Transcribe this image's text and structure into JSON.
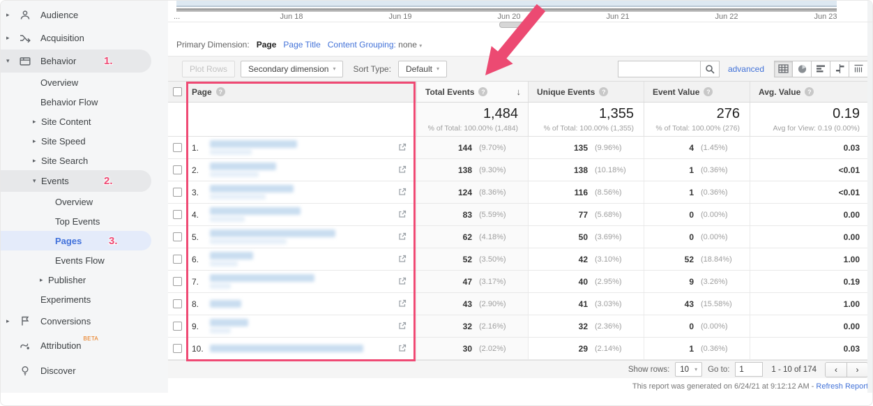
{
  "colors": {
    "accent_pink": "#ef4a74",
    "link_blue": "#4272d8",
    "active_blue": "#4272db",
    "beta_orange": "#e8710a"
  },
  "sidebar": {
    "items": [
      {
        "label": "Audience",
        "icon": "audience-icon"
      },
      {
        "label": "Acquisition",
        "icon": "acquisition-icon"
      },
      {
        "label": "Behavior",
        "icon": "behavior-icon",
        "annotation": "1."
      },
      {
        "label": "Overview"
      },
      {
        "label": "Behavior Flow"
      },
      {
        "label": "Site Content"
      },
      {
        "label": "Site Speed"
      },
      {
        "label": "Site Search"
      },
      {
        "label": "Events",
        "annotation": "2."
      },
      {
        "label": "Overview"
      },
      {
        "label": "Top Events"
      },
      {
        "label": "Pages",
        "annotation": "3."
      },
      {
        "label": "Events Flow"
      },
      {
        "label": "Publisher"
      },
      {
        "label": "Experiments"
      },
      {
        "label": "Conversions",
        "icon": "conversions-icon"
      },
      {
        "label": "Attribution",
        "icon": "attribution-icon",
        "badge": "BETA"
      },
      {
        "label": "Discover",
        "icon": "discover-icon"
      }
    ]
  },
  "chart": {
    "x_labels": [
      "...",
      "Jun 18",
      "Jun 19",
      "Jun 20",
      "Jun 21",
      "Jun 22",
      "Jun 23"
    ]
  },
  "primary_dimension": {
    "label": "Primary Dimension:",
    "selected": "Page",
    "alt": "Page Title",
    "grouping_label": "Content Grouping:",
    "grouping_value": "none"
  },
  "toolbar": {
    "plot_rows": "Plot Rows",
    "secondary_dimension": "Secondary dimension",
    "sort_type_label": "Sort Type:",
    "sort_type_value": "Default",
    "search_value": "",
    "advanced": "advanced"
  },
  "table": {
    "columns": {
      "page": "Page",
      "total_events": "Total Events",
      "unique_events": "Unique Events",
      "event_value": "Event Value",
      "avg_value": "Avg. Value"
    },
    "summary": {
      "total_events": {
        "value": "1,484",
        "sub": "% of Total: 100.00% (1,484)"
      },
      "unique_events": {
        "value": "1,355",
        "sub": "% of Total: 100.00% (1,355)"
      },
      "event_value": {
        "value": "276",
        "sub": "% of Total: 100.00% (276)"
      },
      "avg_value": {
        "value": "0.19",
        "sub": "Avg for View: 0.19 (0.00%)"
      }
    },
    "rows": [
      {
        "index": "1.",
        "total_events": "144",
        "total_events_pct": "(9.70%)",
        "unique_events": "135",
        "unique_events_pct": "(9.96%)",
        "event_value": "4",
        "event_value_pct": "(1.45%)",
        "avg_value": "0.03",
        "redacted_w": 125,
        "redacted_w2": 60
      },
      {
        "index": "2.",
        "total_events": "138",
        "total_events_pct": "(9.30%)",
        "unique_events": "138",
        "unique_events_pct": "(10.18%)",
        "event_value": "1",
        "event_value_pct": "(0.36%)",
        "avg_value": "<0.01",
        "redacted_w": 95,
        "redacted_w2": 70
      },
      {
        "index": "3.",
        "total_events": "124",
        "total_events_pct": "(8.36%)",
        "unique_events": "116",
        "unique_events_pct": "(8.56%)",
        "event_value": "1",
        "event_value_pct": "(0.36%)",
        "avg_value": "<0.01",
        "redacted_w": 120,
        "redacted_w2": 80
      },
      {
        "index": "4.",
        "total_events": "83",
        "total_events_pct": "(5.59%)",
        "unique_events": "77",
        "unique_events_pct": "(5.68%)",
        "event_value": "0",
        "event_value_pct": "(0.00%)",
        "avg_value": "0.00",
        "redacted_w": 130,
        "redacted_w2": 50
      },
      {
        "index": "5.",
        "total_events": "62",
        "total_events_pct": "(4.18%)",
        "unique_events": "50",
        "unique_events_pct": "(3.69%)",
        "event_value": "0",
        "event_value_pct": "(0.00%)",
        "avg_value": "0.00",
        "redacted_w": 180,
        "redacted_w2": 110
      },
      {
        "index": "6.",
        "total_events": "52",
        "total_events_pct": "(3.50%)",
        "unique_events": "42",
        "unique_events_pct": "(3.10%)",
        "event_value": "52",
        "event_value_pct": "(18.84%)",
        "avg_value": "1.00",
        "redacted_w": 62,
        "redacted_w2": 40
      },
      {
        "index": "7.",
        "total_events": "47",
        "total_events_pct": "(3.17%)",
        "unique_events": "40",
        "unique_events_pct": "(2.95%)",
        "event_value": "9",
        "event_value_pct": "(3.26%)",
        "avg_value": "0.19",
        "redacted_w": 150,
        "redacted_w2": 30
      },
      {
        "index": "8.",
        "total_events": "43",
        "total_events_pct": "(2.90%)",
        "unique_events": "41",
        "unique_events_pct": "(3.03%)",
        "event_value": "43",
        "event_value_pct": "(15.58%)",
        "avg_value": "1.00",
        "redacted_w": 45,
        "redacted_w2": 0
      },
      {
        "index": "9.",
        "total_events": "32",
        "total_events_pct": "(2.16%)",
        "unique_events": "32",
        "unique_events_pct": "(2.36%)",
        "event_value": "0",
        "event_value_pct": "(0.00%)",
        "avg_value": "0.00",
        "redacted_w": 55,
        "redacted_w2": 30
      },
      {
        "index": "10.",
        "total_events": "30",
        "total_events_pct": "(2.02%)",
        "unique_events": "29",
        "unique_events_pct": "(2.14%)",
        "event_value": "1",
        "event_value_pct": "(0.36%)",
        "avg_value": "0.03",
        "redacted_w": 220,
        "redacted_w2": 0
      }
    ]
  },
  "pagination": {
    "show_rows_label": "Show rows:",
    "show_rows_value": "10",
    "goto_label": "Go to:",
    "goto_value": "1",
    "range": "1 - 10 of 174"
  },
  "footer_note": {
    "text": "This report was generated on 6/24/21 at 9:12:12 AM -",
    "link": "Refresh Report"
  }
}
